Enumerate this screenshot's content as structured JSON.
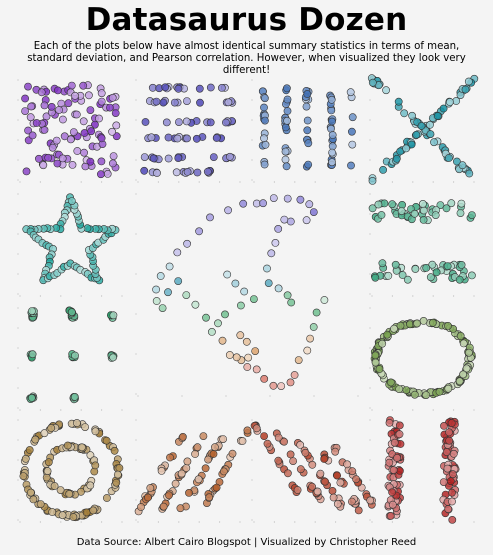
{
  "header": {
    "title": "Datasaurus Dozen",
    "subtitle_lines": [
      "Each of the plots below have almost identical summary statistics in terms of mean,",
      "standard deviation, and Pearson correlation. However, when visualized they look very different!"
    ]
  },
  "footer": {
    "text": "Data Source: Albert Cairo Blogspot | Visualized by Christopher Reed"
  },
  "chart_data": [
    {
      "type": "scatter",
      "name": "away",
      "color": "#7b2cbf",
      "pattern": "away",
      "xlim": [
        0,
        100
      ],
      "ylim": [
        0,
        100
      ]
    },
    {
      "type": "scatter",
      "name": "h_lines",
      "color": "#4c45b5",
      "pattern": "hlines",
      "xlim": [
        0,
        100
      ],
      "ylim": [
        0,
        100
      ]
    },
    {
      "type": "scatter",
      "name": "v_lines",
      "color": "#3f6fb5",
      "pattern": "vlines",
      "xlim": [
        0,
        100
      ],
      "ylim": [
        0,
        100
      ]
    },
    {
      "type": "scatter",
      "name": "x_shape",
      "color": "#138fa0",
      "pattern": "xshape",
      "xlim": [
        0,
        100
      ],
      "ylim": [
        0,
        100
      ]
    },
    {
      "type": "scatter",
      "name": "star",
      "color": "#1aa39b",
      "pattern": "star",
      "xlim": [
        0,
        100
      ],
      "ylim": [
        0,
        100
      ]
    },
    {
      "type": "scatter",
      "name": "dino",
      "color": "gradient",
      "pattern": "dino",
      "xlim": [
        0,
        100
      ],
      "ylim": [
        0,
        100
      ]
    },
    {
      "type": "scatter",
      "name": "dots",
      "color": "#2c9f6b",
      "pattern": "dots",
      "xlim": [
        0,
        100
      ],
      "ylim": [
        0,
        100
      ]
    },
    {
      "type": "scatter",
      "name": "wide_lines",
      "color": "#3aa680",
      "pattern": "widelines",
      "xlim": [
        0,
        100
      ],
      "ylim": [
        0,
        100
      ]
    },
    {
      "type": "scatter",
      "name": "circle",
      "color": "#6f9a44",
      "pattern": "circle",
      "xlim": [
        0,
        100
      ],
      "ylim": [
        0,
        100
      ]
    },
    {
      "type": "scatter",
      "name": "bullseye",
      "color": "#a07a33",
      "pattern": "bullseye",
      "xlim": [
        0,
        100
      ],
      "ylim": [
        0,
        100
      ]
    },
    {
      "type": "scatter",
      "name": "slant_up",
      "color": "#b35e2a",
      "pattern": "slantup",
      "xlim": [
        0,
        100
      ],
      "ylim": [
        0,
        100
      ]
    },
    {
      "type": "scatter",
      "name": "slant_down",
      "color": "#b03b22",
      "pattern": "slantdown",
      "xlim": [
        0,
        100
      ],
      "ylim": [
        0,
        100
      ]
    },
    {
      "type": "scatter",
      "name": "high_lines",
      "color": "#b01c1c",
      "pattern": "highlines",
      "xlim": [
        0,
        100
      ],
      "ylim": [
        0,
        100
      ]
    }
  ]
}
